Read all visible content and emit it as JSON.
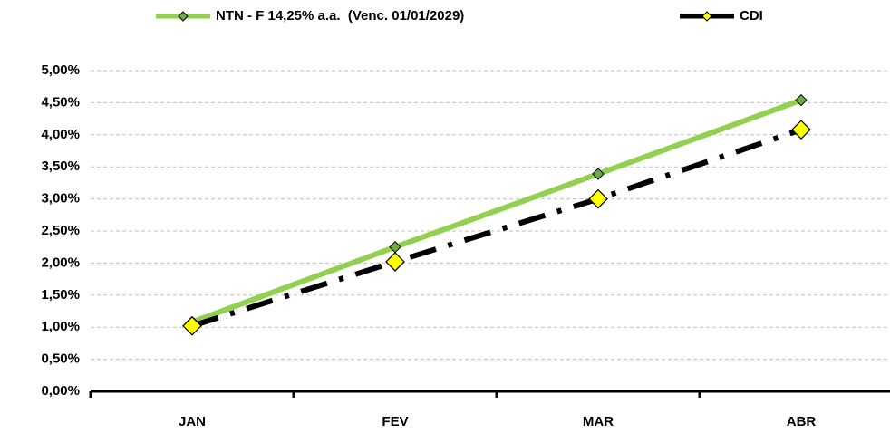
{
  "chart_data": {
    "type": "line",
    "categories": [
      "JAN",
      "FEV",
      "MAR",
      "ABR"
    ],
    "series": [
      {
        "name": "NTN - F 14,25% a.a.  (Venc. 01/01/2029)",
        "color": "#92d050",
        "marker_color": "#70ad47",
        "line_style": "solid",
        "values": [
          1.08,
          2.25,
          3.39,
          4.54
        ]
      },
      {
        "name": "CDI",
        "color": "#000000",
        "marker_color": "#ffff00",
        "line_style": "dashdot",
        "values": [
          1.02,
          2.02,
          3.0,
          4.08
        ]
      }
    ],
    "ylim": [
      0,
      5
    ],
    "yticks": [
      {
        "value": 0,
        "label": "0,00%"
      },
      {
        "value": 0.5,
        "label": "0,50%"
      },
      {
        "value": 1,
        "label": "1,00%"
      },
      {
        "value": 1.5,
        "label": "1,50%"
      },
      {
        "value": 2,
        "label": "2,00%"
      },
      {
        "value": 2.5,
        "label": "2,50%"
      },
      {
        "value": 3,
        "label": "3,00%"
      },
      {
        "value": 3.5,
        "label": "3,50%"
      },
      {
        "value": 4,
        "label": "4,00%"
      },
      {
        "value": 4.5,
        "label": "4,50%"
      },
      {
        "value": 5,
        "label": "5,00%"
      }
    ],
    "grid": true,
    "legend": "top"
  }
}
